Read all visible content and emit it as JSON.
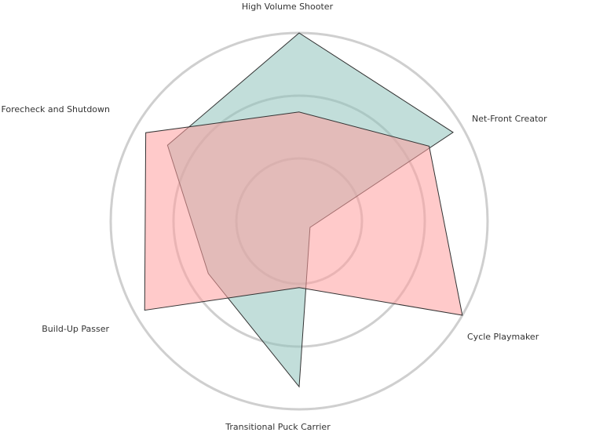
{
  "chart_data": {
    "type": "radar",
    "categories": [
      "High Volume Shooter",
      "Net-Front Creator",
      "Cycle Playmaker",
      "Transitional Puck Carrier",
      "Build-Up Passer",
      "Forecheck and Shutdown"
    ],
    "series": [
      {
        "color": "#8fc3bb",
        "values": [
          3.0,
          2.83,
          0.2,
          2.64,
          1.67,
          2.42
        ]
      },
      {
        "color": "#ff9e9e",
        "values": [
          1.74,
          2.39,
          3.0,
          1.06,
          2.84,
          2.82
        ]
      }
    ],
    "rlim": [
      0,
      3
    ],
    "rticks": [
      1,
      2,
      3
    ],
    "grid": true
  }
}
